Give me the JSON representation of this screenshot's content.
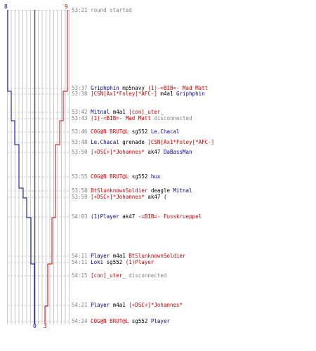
{
  "chart": {
    "blue_start_label": "8",
    "red_start_label": "9",
    "blue_end_label": "0",
    "red_end_label": "3",
    "blue_color": "#000099",
    "red_color": "#cc0000"
  },
  "events": [
    {
      "time": "53:21",
      "parts": [
        {
          "text": "round started",
          "color": "gray"
        }
      ]
    },
    {
      "time": "53:37",
      "parts": [
        {
          "text": "Griphphin",
          "color": "blue"
        },
        {
          "text": " mp5navy ",
          "color": "black"
        },
        {
          "text": "(1)-=BIB=- Mad Matt",
          "color": "red"
        }
      ]
    },
    {
      "time": "53:38",
      "parts": [
        {
          "text": "]CSN[Ax1*Foley[*AFC-]",
          "color": "red"
        },
        {
          "text": " m4a1 ",
          "color": "black"
        },
        {
          "text": "Griphphin",
          "color": "blue"
        }
      ]
    },
    {
      "time": "53:42",
      "parts": [
        {
          "text": "Mitnal",
          "color": "blue"
        },
        {
          "text": " m4a1 ",
          "color": "black"
        },
        {
          "text": "[con]_uter_",
          "color": "red"
        }
      ]
    },
    {
      "time": "53:43",
      "parts": [
        {
          "text": "(1)-=BIB=- Mad Matt",
          "color": "red"
        },
        {
          "text": " disconnected",
          "color": "gray"
        }
      ]
    },
    {
      "time": "53:46",
      "parts": [
        {
          "text": "C0G@N BRUT@L",
          "color": "red"
        },
        {
          "text": " sg552 ",
          "color": "black"
        },
        {
          "text": "Le.Chacal",
          "color": "blue"
        }
      ]
    },
    {
      "time": "53:48",
      "parts": [
        {
          "text": "Le.Chacal",
          "color": "blue"
        },
        {
          "text": " grenade ",
          "color": "black"
        },
        {
          "text": "]CSN[Ax1*Foley[*AFC-]",
          "color": "red"
        }
      ]
    },
    {
      "time": "53:50",
      "parts": [
        {
          "text": "[+DSC+]*Johannes*",
          "color": "red"
        },
        {
          "text": " ak47 ",
          "color": "black"
        },
        {
          "text": "DaBassMan",
          "color": "blue"
        }
      ]
    },
    {
      "time": "53:55",
      "parts": [
        {
          "text": "C0G@N BRUT@L",
          "color": "red"
        },
        {
          "text": " sg552 ",
          "color": "black"
        },
        {
          "text": "hux",
          "color": "blue"
        }
      ]
    },
    {
      "time": "53:58",
      "parts": [
        {
          "text": "BtSlunknownSoldier",
          "color": "red"
        },
        {
          "text": " deagle ",
          "color": "black"
        },
        {
          "text": "Mitnal",
          "color": "blue"
        }
      ]
    },
    {
      "time": "53:59",
      "parts": [
        {
          "text": "[+DSC+]*Johannes*",
          "color": "red"
        },
        {
          "text": " ak47 ",
          "color": "black"
        },
        {
          "text": "(",
          "color": "blue"
        }
      ]
    },
    {
      "time": "54:03",
      "parts": [
        {
          "text": "(1)Player",
          "color": "blue"
        },
        {
          "text": " ak47 ",
          "color": "black"
        },
        {
          "text": "-=BIB=- Fusskrueppel",
          "color": "red"
        }
      ]
    },
    {
      "time": "54:11",
      "parts": [
        {
          "text": "Player",
          "color": "blue"
        },
        {
          "text": " m4a1 ",
          "color": "black"
        },
        {
          "text": "BtSlunknownSoldier",
          "color": "red"
        }
      ]
    },
    {
      "time": "54:11",
      "parts": [
        {
          "text": "Loki",
          "color": "blue"
        },
        {
          "text": " sg552 ",
          "color": "black"
        },
        {
          "text": "(1)Player",
          "color": "red"
        }
      ]
    },
    {
      "time": "54:15",
      "parts": [
        {
          "text": "[con]_uter_",
          "color": "red"
        },
        {
          "text": " disconnected",
          "color": "gray"
        }
      ]
    },
    {
      "time": "54:21",
      "parts": [
        {
          "text": "Player",
          "color": "blue"
        },
        {
          "text": " m4a1 ",
          "color": "black"
        },
        {
          "text": "[+DSC+]*Johannes*",
          "color": "red"
        }
      ]
    },
    {
      "time": "54:24",
      "parts": [
        {
          "text": "C0G@N BRUT@L",
          "color": "red"
        },
        {
          "text": " sg552 ",
          "color": "black"
        },
        {
          "text": "Player",
          "color": "blue"
        }
      ]
    }
  ]
}
